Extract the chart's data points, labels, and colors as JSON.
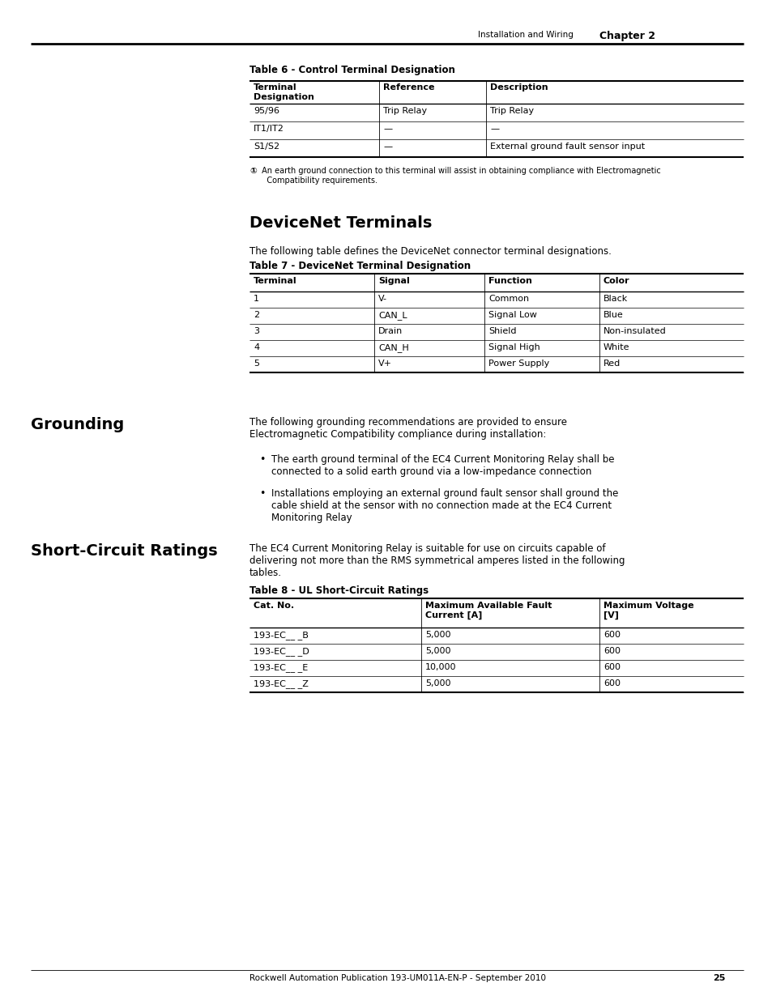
{
  "page_header_left": "Installation and Wiring",
  "page_header_right": "Chapter 2",
  "table6_title": "Table 6 - Control Terminal Designation",
  "table6_headers": [
    "Terminal\nDesignation",
    "Reference",
    "Description"
  ],
  "table6_rows": [
    [
      "95/96",
      "Trip Relay",
      "Trip Relay"
    ],
    [
      "IT1/IT2",
      "—",
      "—"
    ],
    [
      "S1/S2",
      "—",
      "External ground fault sensor input"
    ]
  ],
  "table6_footnote_symbol": "①",
  "table6_footnote_text": " An earth ground connection to this terminal will assist in obtaining compliance with Electromagnetic\n   Compatibility requirements.",
  "devicenet_title": "DeviceNet Terminals",
  "devicenet_intro": "The following table defines the DeviceNet connector terminal designations.",
  "table7_title": "Table 7 - DeviceNet Terminal Designation",
  "table7_headers": [
    "Terminal",
    "Signal",
    "Function",
    "Color"
  ],
  "table7_rows": [
    [
      "1",
      "V-",
      "Common",
      "Black"
    ],
    [
      "2",
      "CAN_L",
      "Signal Low",
      "Blue"
    ],
    [
      "3",
      "Drain",
      "Shield",
      "Non-insulated"
    ],
    [
      "4",
      "CAN_H",
      "Signal High",
      "White"
    ],
    [
      "5",
      "V+",
      "Power Supply",
      "Red"
    ]
  ],
  "grounding_title": "Grounding",
  "grounding_intro": "The following grounding recommendations are provided to ensure\nElectromagnetic Compatibility compliance during installation:",
  "grounding_bullets": [
    "The earth ground terminal of the EC4 Current Monitoring Relay shall be\nconnected to a solid earth ground via a low-impedance connection",
    "Installations employing an external ground fault sensor shall ground the\ncable shield at the sensor with no connection made at the EC4 Current\nMonitoring Relay"
  ],
  "short_circuit_title": "Short-Circuit Ratings",
  "short_circuit_intro": "The EC4 Current Monitoring Relay is suitable for use on circuits capable of\ndelivering not more than the RMS symmetrical amperes listed in the following\ntables.",
  "table8_title": "Table 8 - UL Short-Circuit Ratings",
  "table8_headers": [
    "Cat. No.",
    "Maximum Available Fault\nCurrent [A]",
    "Maximum Voltage\n[V]"
  ],
  "table8_rows": [
    [
      "193-EC__ _B",
      "5,000",
      "600"
    ],
    [
      "193-EC__ _D",
      "5,000",
      "600"
    ],
    [
      "193-EC__ _E",
      "10,000",
      "600"
    ],
    [
      "193-EC__ _Z",
      "5,000",
      "600"
    ]
  ],
  "footer_text": "Rockwell Automation Publication 193-UM011A-EN-P - September 2010",
  "footer_page": "25",
  "bg_color": "#ffffff"
}
